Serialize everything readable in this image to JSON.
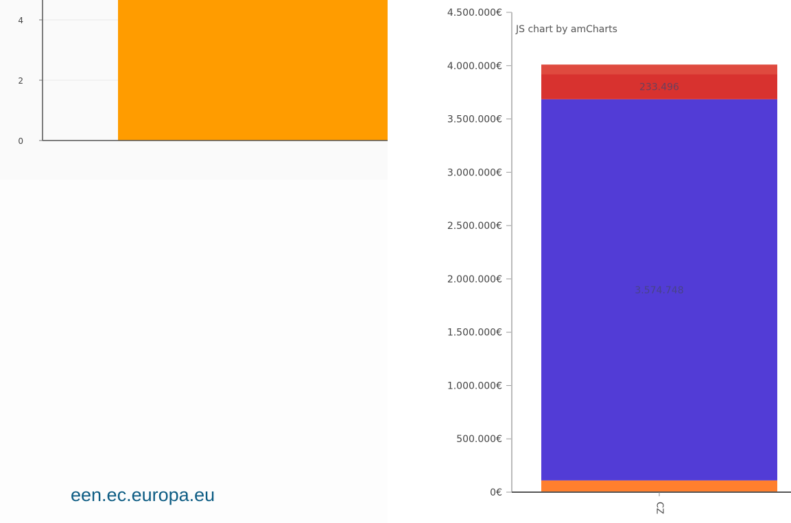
{
  "left_chart": {
    "chart_data": {
      "type": "bar",
      "y_ticks": [
        "0",
        "2",
        "4"
      ],
      "ylim": [
        0,
        4.7
      ],
      "series": [
        {
          "values": [
            4.7
          ],
          "color": "#ff9c00"
        }
      ]
    }
  },
  "right_chart": {
    "chart_data": {
      "type": "bar",
      "stacked": true,
      "credit": "JS chart by amCharts",
      "categories": [
        "CZ"
      ],
      "ylim": [
        0,
        4500000
      ],
      "y_ticks": [
        {
          "value": 0,
          "label": "0€"
        },
        {
          "value": 500000,
          "label": "500.000€"
        },
        {
          "value": 1000000,
          "label": "1.000.000€"
        },
        {
          "value": 1500000,
          "label": "1.500.000€"
        },
        {
          "value": 2000000,
          "label": "2.000.000€"
        },
        {
          "value": 2500000,
          "label": "2.500.000€"
        },
        {
          "value": 3000000,
          "label": "3.000.000€"
        },
        {
          "value": 3500000,
          "label": "3.500.000€"
        },
        {
          "value": 4000000,
          "label": "4.000.000€"
        },
        {
          "value": 4500000,
          "label": "4.500.000€"
        }
      ],
      "series": [
        {
          "values": [
            110000
          ],
          "color": "#ff7f2e",
          "label": ""
        },
        {
          "values": [
            3574748
          ],
          "color": "#523cd6",
          "label": "3.574.748"
        },
        {
          "values": [
            233496
          ],
          "color": "#d8322f",
          "label": "233.496"
        },
        {
          "values": [
            92000
          ],
          "color": "#df4a3f",
          "label": ""
        }
      ]
    }
  },
  "footer": {
    "website": "een.ec.europa.eu"
  }
}
